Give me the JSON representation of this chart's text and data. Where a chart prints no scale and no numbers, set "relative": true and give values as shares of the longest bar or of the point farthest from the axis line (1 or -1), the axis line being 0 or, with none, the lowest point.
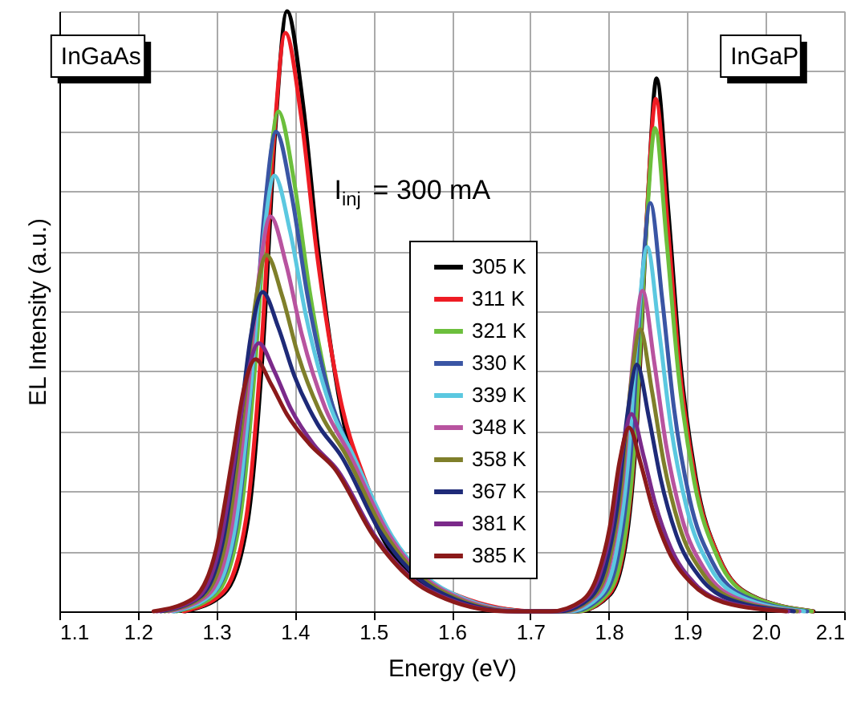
{
  "chart_data": {
    "type": "line",
    "xlabel": "Energy (eV)",
    "ylabel": "EL Intensity (a.u.)",
    "relative": true,
    "xlim": [
      1.1,
      2.1
    ],
    "xticks": [
      1.1,
      1.2,
      1.3,
      1.4,
      1.5,
      1.6,
      1.7,
      1.8,
      1.9,
      {
        "value": 2.0,
        "label": "2.0"
      },
      2.1
    ],
    "grid": true,
    "legend": "bottom",
    "line_style": "solid",
    "marker": "none",
    "annotations": [
      "InGaAs",
      "InGaP",
      "I$_{inj}$ = 300 mA"
    ],
    "series": [
      {
        "name": "305 K",
        "color": "#000000",
        "x": [
          1.26,
          1.31,
          1.34,
          1.36,
          1.375,
          1.39,
          1.41,
          1.43,
          1.46,
          1.49,
          1.54,
          1.61,
          1.71,
          1.761,
          1.801,
          1.821,
          1.836,
          1.849,
          1.861,
          1.876,
          1.891,
          1.911,
          1.941,
          1.981,
          2.061
        ],
        "values": [
          0,
          0.03,
          0.15,
          0.45,
          0.8,
          1,
          0.85,
          0.6,
          0.33,
          0.19,
          0.07,
          0.02,
          0,
          0,
          0.027,
          0.107,
          0.311,
          0.666,
          0.888,
          0.666,
          0.417,
          0.222,
          0.089,
          0.027,
          0
        ]
      },
      {
        "name": "311 K",
        "color": "#ee1c24",
        "x": [
          1.258,
          1.308,
          1.338,
          1.358,
          1.373,
          1.388,
          1.408,
          1.428,
          1.458,
          1.488,
          1.538,
          1.608,
          1.708,
          1.76,
          1.8,
          1.82,
          1.835,
          1.848,
          1.86,
          1.875,
          1.89,
          1.91,
          1.94,
          1.98,
          2.06
        ],
        "values": [
          0,
          0.031,
          0.155,
          0.45,
          0.78,
          0.964,
          0.825,
          0.598,
          0.354,
          0.224,
          0.093,
          0.026,
          0,
          0,
          0.028,
          0.11,
          0.308,
          0.647,
          0.854,
          0.646,
          0.41,
          0.221,
          0.091,
          0.027,
          0
        ]
      },
      {
        "name": "321 K",
        "color": "#6cbf3c",
        "x": [
          1.249,
          1.299,
          1.329,
          1.349,
          1.364,
          1.379,
          1.399,
          1.419,
          1.449,
          1.479,
          1.529,
          1.599,
          1.699,
          1.759,
          1.799,
          1.819,
          1.834,
          1.847,
          1.859,
          1.874,
          1.889,
          1.909,
          1.939,
          1.979,
          2.059
        ],
        "values": [
          0,
          0.028,
          0.143,
          0.402,
          0.681,
          0.833,
          0.717,
          0.533,
          0.336,
          0.228,
          0.101,
          0.027,
          0,
          0,
          0.03,
          0.111,
          0.299,
          0.617,
          0.805,
          0.613,
          0.394,
          0.216,
          0.089,
          0.027,
          0
        ]
      },
      {
        "name": "330 K",
        "color": "#3a55a4",
        "x": [
          1.246,
          1.296,
          1.326,
          1.346,
          1.361,
          1.376,
          1.396,
          1.416,
          1.446,
          1.476,
          1.526,
          1.596,
          1.696,
          1.753,
          1.793,
          1.813,
          1.828,
          1.841,
          1.853,
          1.868,
          1.883,
          1.903,
          1.933,
          1.973,
          2.053
        ],
        "values": [
          0,
          0.03,
          0.146,
          0.4,
          0.661,
          0.799,
          0.693,
          0.527,
          0.352,
          0.253,
          0.117,
          0.032,
          0,
          0,
          0.027,
          0.1,
          0.26,
          0.526,
          0.68,
          0.522,
          0.34,
          0.188,
          0.08,
          0.025,
          0
        ]
      },
      {
        "name": "339 K",
        "color": "#5bc8e0",
        "x": [
          1.244,
          1.294,
          1.324,
          1.344,
          1.359,
          1.374,
          1.394,
          1.414,
          1.444,
          1.474,
          1.524,
          1.594,
          1.694,
          1.749,
          1.789,
          1.809,
          1.824,
          1.837,
          1.849,
          1.864,
          1.879,
          1.899,
          1.929,
          1.969,
          2.049
        ],
        "values": [
          0,
          0.028,
          0.141,
          0.375,
          0.607,
          0.726,
          0.633,
          0.494,
          0.346,
          0.261,
          0.125,
          0.034,
          0,
          0,
          0.026,
          0.095,
          0.239,
          0.474,
          0.607,
          0.469,
          0.31,
          0.174,
          0.074,
          0.024,
          0
        ]
      },
      {
        "name": "348 K",
        "color": "#b8539f",
        "x": [
          1.239,
          1.289,
          1.319,
          1.339,
          1.354,
          1.369,
          1.389,
          1.409,
          1.439,
          1.469,
          1.519,
          1.589,
          1.689,
          1.743,
          1.783,
          1.803,
          1.818,
          1.831,
          1.843,
          1.858,
          1.873,
          1.893,
          1.923,
          1.963,
          2.043
        ],
        "values": [
          0,
          0.027,
          0.136,
          0.351,
          0.555,
          0.658,
          0.578,
          0.461,
          0.338,
          0.264,
          0.13,
          0.035,
          0,
          0,
          0.025,
          0.088,
          0.217,
          0.421,
          0.534,
          0.415,
          0.278,
          0.157,
          0.068,
          0.022,
          0
        ]
      },
      {
        "name": "358 K",
        "color": "#7f7f2a",
        "x": [
          1.234,
          1.284,
          1.314,
          1.334,
          1.349,
          1.364,
          1.384,
          1.404,
          1.434,
          1.464,
          1.514,
          1.584,
          1.684,
          1.74,
          1.78,
          1.8,
          1.815,
          1.828,
          1.84,
          1.855,
          1.87,
          1.89,
          1.92,
          1.96,
          2.04
        ],
        "values": [
          0,
          0.026,
          0.129,
          0.327,
          0.507,
          0.594,
          0.525,
          0.428,
          0.327,
          0.263,
          0.132,
          0.036,
          0,
          0,
          0.024,
          0.081,
          0.196,
          0.375,
          0.47,
          0.368,
          0.249,
          0.142,
          0.063,
          0.02,
          0
        ]
      },
      {
        "name": "367 K",
        "color": "#1e2a78",
        "x": [
          1.229,
          1.279,
          1.309,
          1.329,
          1.344,
          1.359,
          1.379,
          1.399,
          1.429,
          1.459,
          1.509,
          1.579,
          1.679,
          1.736,
          1.776,
          1.796,
          1.811,
          1.824,
          1.836,
          1.851,
          1.866,
          1.886,
          1.916,
          1.956,
          2.036
        ],
        "values": [
          0,
          0.024,
          0.121,
          0.302,
          0.459,
          0.532,
          0.473,
          0.394,
          0.312,
          0.259,
          0.132,
          0.036,
          0,
          0,
          0.022,
          0.075,
          0.176,
          0.33,
          0.411,
          0.324,
          0.222,
          0.128,
          0.057,
          0.019,
          0
        ]
      },
      {
        "name": "381 K",
        "color": "#7b2a8a",
        "x": [
          1.224,
          1.274,
          1.304,
          1.324,
          1.339,
          1.354,
          1.374,
          1.394,
          1.424,
          1.454,
          1.504,
          1.574,
          1.674,
          1.729,
          1.769,
          1.789,
          1.804,
          1.817,
          1.829,
          1.844,
          1.859,
          1.879,
          1.909,
          1.949,
          2.029
        ],
        "values": [
          0,
          0.021,
          0.107,
          0.261,
          0.389,
          0.447,
          0.4,
          0.34,
          0.278,
          0.236,
          0.122,
          0.033,
          0,
          0,
          0.019,
          0.063,
          0.144,
          0.267,
          0.329,
          0.261,
          0.181,
          0.106,
          0.047,
          0.016,
          0
        ]
      },
      {
        "name": "385 K",
        "color": "#8b1a1a",
        "x": [
          1.22,
          1.27,
          1.3,
          1.32,
          1.335,
          1.35,
          1.37,
          1.39,
          1.42,
          1.45,
          1.5,
          1.57,
          1.67,
          1.726,
          1.766,
          1.786,
          1.801,
          1.814,
          1.826,
          1.841,
          1.856,
          1.876,
          1.906,
          1.946,
          2.026
        ],
        "values": [
          0,
          0.021,
          0.105,
          0.252,
          0.37,
          0.42,
          0.378,
          0.328,
          0.277,
          0.239,
          0.126,
          0.034,
          0,
          0,
          0.018,
          0.061,
          0.138,
          0.251,
          0.306,
          0.245,
          0.171,
          0.101,
          0.046,
          0.015,
          0
        ]
      }
    ]
  }
}
